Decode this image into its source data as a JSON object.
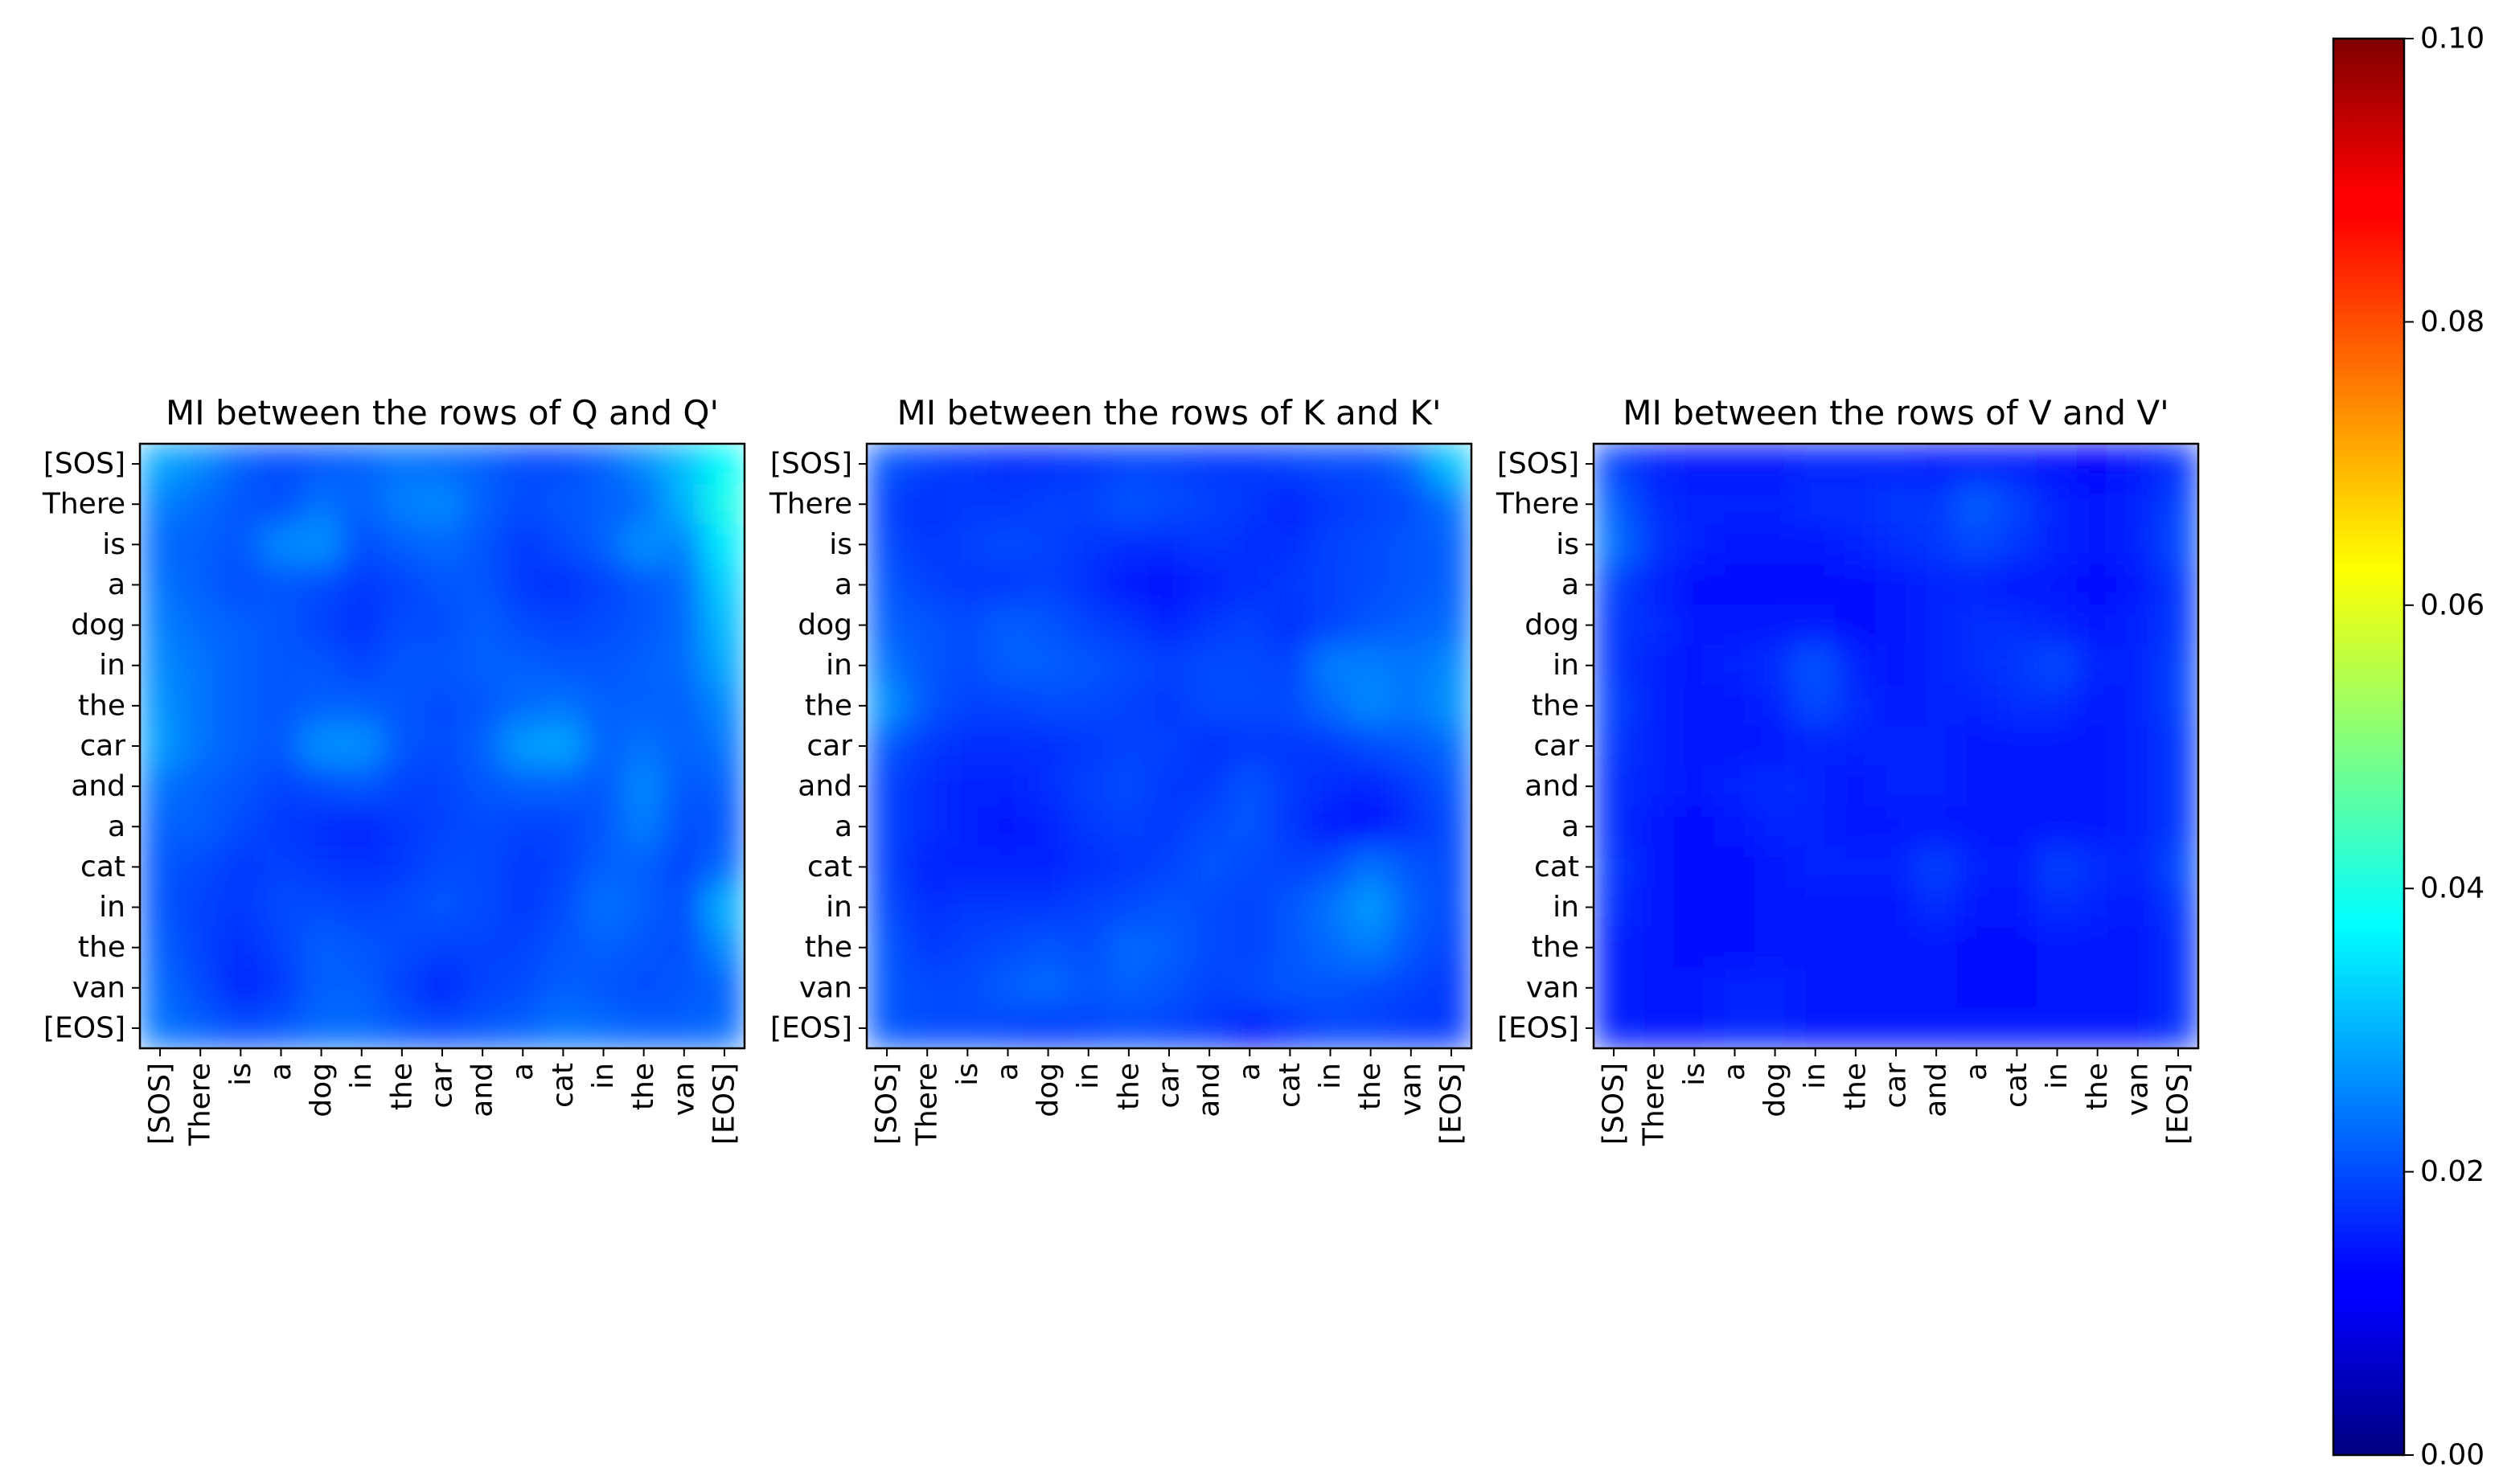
{
  "chart_data": {
    "type": "heatmap",
    "colormap": "jet",
    "interpolation": "smooth",
    "colorbar": {
      "min": 0.0,
      "max": 0.1,
      "ticks": [
        "0.00",
        "0.02",
        "0.04",
        "0.06",
        "0.08",
        "0.10"
      ]
    },
    "tokens": [
      "[SOS]",
      "There",
      "is",
      "a",
      "dog",
      "in",
      "the",
      "car",
      "and",
      "a",
      "cat",
      "in",
      "the",
      "van",
      "[EOS]"
    ],
    "panels": [
      {
        "title": "MI between the rows of Q and Q'",
        "values": [
          [
            0.029,
            0.026,
            0.022,
            0.02,
            0.021,
            0.022,
            0.024,
            0.023,
            0.022,
            0.02,
            0.02,
            0.022,
            0.026,
            0.031,
            0.038
          ],
          [
            0.025,
            0.023,
            0.021,
            0.02,
            0.024,
            0.022,
            0.025,
            0.026,
            0.022,
            0.02,
            0.021,
            0.022,
            0.023,
            0.03,
            0.04
          ],
          [
            0.023,
            0.022,
            0.021,
            0.026,
            0.027,
            0.02,
            0.022,
            0.023,
            0.021,
            0.018,
            0.02,
            0.022,
            0.027,
            0.025,
            0.036
          ],
          [
            0.024,
            0.022,
            0.02,
            0.021,
            0.02,
            0.018,
            0.019,
            0.021,
            0.021,
            0.018,
            0.017,
            0.019,
            0.021,
            0.023,
            0.033
          ],
          [
            0.025,
            0.023,
            0.022,
            0.021,
            0.019,
            0.017,
            0.02,
            0.02,
            0.022,
            0.02,
            0.019,
            0.02,
            0.021,
            0.023,
            0.031
          ],
          [
            0.026,
            0.024,
            0.022,
            0.021,
            0.021,
            0.019,
            0.021,
            0.021,
            0.022,
            0.022,
            0.021,
            0.021,
            0.022,
            0.023,
            0.029
          ],
          [
            0.027,
            0.024,
            0.022,
            0.021,
            0.022,
            0.022,
            0.021,
            0.02,
            0.021,
            0.023,
            0.024,
            0.022,
            0.022,
            0.022,
            0.026
          ],
          [
            0.028,
            0.024,
            0.022,
            0.021,
            0.027,
            0.027,
            0.021,
            0.02,
            0.022,
            0.028,
            0.029,
            0.022,
            0.024,
            0.022,
            0.024
          ],
          [
            0.024,
            0.022,
            0.021,
            0.019,
            0.02,
            0.021,
            0.019,
            0.019,
            0.021,
            0.022,
            0.022,
            0.021,
            0.026,
            0.021,
            0.022
          ],
          [
            0.022,
            0.022,
            0.02,
            0.018,
            0.017,
            0.016,
            0.018,
            0.019,
            0.02,
            0.019,
            0.019,
            0.021,
            0.025,
            0.02,
            0.021
          ],
          [
            0.021,
            0.02,
            0.018,
            0.019,
            0.018,
            0.017,
            0.018,
            0.02,
            0.02,
            0.018,
            0.019,
            0.022,
            0.022,
            0.019,
            0.023
          ],
          [
            0.021,
            0.019,
            0.018,
            0.02,
            0.02,
            0.019,
            0.02,
            0.021,
            0.02,
            0.018,
            0.02,
            0.024,
            0.022,
            0.02,
            0.03
          ],
          [
            0.022,
            0.019,
            0.017,
            0.019,
            0.022,
            0.021,
            0.02,
            0.019,
            0.019,
            0.019,
            0.021,
            0.022,
            0.021,
            0.02,
            0.026
          ],
          [
            0.023,
            0.02,
            0.016,
            0.018,
            0.022,
            0.022,
            0.019,
            0.016,
            0.019,
            0.02,
            0.022,
            0.021,
            0.02,
            0.021,
            0.022
          ],
          [
            0.024,
            0.022,
            0.02,
            0.021,
            0.023,
            0.023,
            0.021,
            0.02,
            0.021,
            0.022,
            0.024,
            0.023,
            0.022,
            0.022,
            0.023
          ]
        ]
      },
      {
        "title": "MI between the rows of K and K'",
        "values": [
          [
            0.021,
            0.019,
            0.018,
            0.017,
            0.017,
            0.018,
            0.019,
            0.019,
            0.018,
            0.018,
            0.019,
            0.02,
            0.02,
            0.023,
            0.032
          ],
          [
            0.019,
            0.017,
            0.018,
            0.018,
            0.019,
            0.019,
            0.021,
            0.02,
            0.019,
            0.018,
            0.016,
            0.018,
            0.019,
            0.02,
            0.024
          ],
          [
            0.02,
            0.018,
            0.019,
            0.02,
            0.019,
            0.018,
            0.017,
            0.017,
            0.018,
            0.017,
            0.017,
            0.019,
            0.02,
            0.021,
            0.022
          ],
          [
            0.021,
            0.019,
            0.018,
            0.018,
            0.019,
            0.017,
            0.015,
            0.014,
            0.016,
            0.017,
            0.018,
            0.019,
            0.02,
            0.021,
            0.022
          ],
          [
            0.022,
            0.021,
            0.02,
            0.022,
            0.021,
            0.019,
            0.018,
            0.016,
            0.018,
            0.019,
            0.017,
            0.019,
            0.021,
            0.022,
            0.023
          ],
          [
            0.024,
            0.021,
            0.02,
            0.022,
            0.022,
            0.021,
            0.02,
            0.019,
            0.02,
            0.02,
            0.019,
            0.025,
            0.025,
            0.024,
            0.026
          ],
          [
            0.027,
            0.021,
            0.019,
            0.019,
            0.02,
            0.02,
            0.019,
            0.018,
            0.02,
            0.02,
            0.02,
            0.023,
            0.026,
            0.024,
            0.027
          ],
          [
            0.021,
            0.018,
            0.017,
            0.017,
            0.017,
            0.018,
            0.019,
            0.019,
            0.017,
            0.018,
            0.018,
            0.018,
            0.02,
            0.021,
            0.023
          ],
          [
            0.019,
            0.017,
            0.016,
            0.016,
            0.017,
            0.019,
            0.02,
            0.018,
            0.018,
            0.021,
            0.018,
            0.017,
            0.016,
            0.018,
            0.021
          ],
          [
            0.019,
            0.017,
            0.016,
            0.015,
            0.016,
            0.018,
            0.019,
            0.018,
            0.02,
            0.021,
            0.018,
            0.015,
            0.014,
            0.017,
            0.02
          ],
          [
            0.019,
            0.016,
            0.016,
            0.016,
            0.016,
            0.017,
            0.018,
            0.019,
            0.021,
            0.02,
            0.019,
            0.02,
            0.024,
            0.021,
            0.02
          ],
          [
            0.02,
            0.017,
            0.018,
            0.018,
            0.018,
            0.019,
            0.02,
            0.021,
            0.02,
            0.019,
            0.021,
            0.024,
            0.028,
            0.022,
            0.02
          ],
          [
            0.021,
            0.018,
            0.019,
            0.02,
            0.021,
            0.02,
            0.023,
            0.022,
            0.02,
            0.019,
            0.021,
            0.023,
            0.025,
            0.021,
            0.019
          ],
          [
            0.021,
            0.02,
            0.02,
            0.022,
            0.023,
            0.021,
            0.022,
            0.021,
            0.019,
            0.02,
            0.021,
            0.021,
            0.02,
            0.019,
            0.018
          ],
          [
            0.021,
            0.02,
            0.02,
            0.019,
            0.018,
            0.019,
            0.02,
            0.019,
            0.018,
            0.015,
            0.017,
            0.019,
            0.019,
            0.018,
            0.018
          ]
        ]
      },
      {
        "title": "MI between the rows of V and V'",
        "values": [
          [
            0.019,
            0.016,
            0.015,
            0.015,
            0.015,
            0.016,
            0.016,
            0.016,
            0.015,
            0.015,
            0.015,
            0.014,
            0.013,
            0.015,
            0.017
          ],
          [
            0.022,
            0.017,
            0.016,
            0.016,
            0.016,
            0.017,
            0.017,
            0.018,
            0.018,
            0.022,
            0.019,
            0.016,
            0.015,
            0.016,
            0.019
          ],
          [
            0.024,
            0.018,
            0.016,
            0.015,
            0.015,
            0.015,
            0.016,
            0.017,
            0.018,
            0.02,
            0.018,
            0.016,
            0.015,
            0.016,
            0.02
          ],
          [
            0.019,
            0.016,
            0.014,
            0.014,
            0.014,
            0.014,
            0.014,
            0.015,
            0.016,
            0.016,
            0.015,
            0.015,
            0.014,
            0.015,
            0.018
          ],
          [
            0.018,
            0.017,
            0.015,
            0.015,
            0.015,
            0.015,
            0.014,
            0.015,
            0.016,
            0.017,
            0.017,
            0.016,
            0.015,
            0.016,
            0.018
          ],
          [
            0.018,
            0.016,
            0.015,
            0.016,
            0.017,
            0.021,
            0.016,
            0.015,
            0.016,
            0.017,
            0.018,
            0.02,
            0.016,
            0.016,
            0.019
          ],
          [
            0.019,
            0.016,
            0.015,
            0.015,
            0.016,
            0.02,
            0.017,
            0.015,
            0.016,
            0.016,
            0.017,
            0.017,
            0.015,
            0.016,
            0.019
          ],
          [
            0.018,
            0.016,
            0.015,
            0.015,
            0.015,
            0.016,
            0.016,
            0.016,
            0.016,
            0.015,
            0.015,
            0.015,
            0.015,
            0.016,
            0.018
          ],
          [
            0.017,
            0.016,
            0.015,
            0.016,
            0.017,
            0.016,
            0.015,
            0.016,
            0.016,
            0.015,
            0.015,
            0.015,
            0.015,
            0.016,
            0.018
          ],
          [
            0.017,
            0.015,
            0.014,
            0.015,
            0.016,
            0.016,
            0.015,
            0.015,
            0.015,
            0.015,
            0.015,
            0.015,
            0.015,
            0.016,
            0.018
          ],
          [
            0.018,
            0.015,
            0.014,
            0.014,
            0.015,
            0.016,
            0.016,
            0.016,
            0.019,
            0.016,
            0.015,
            0.019,
            0.017,
            0.016,
            0.02
          ],
          [
            0.017,
            0.015,
            0.014,
            0.014,
            0.015,
            0.015,
            0.015,
            0.015,
            0.017,
            0.015,
            0.015,
            0.017,
            0.016,
            0.015,
            0.018
          ],
          [
            0.016,
            0.015,
            0.014,
            0.014,
            0.015,
            0.015,
            0.015,
            0.015,
            0.015,
            0.014,
            0.014,
            0.015,
            0.015,
            0.015,
            0.017
          ],
          [
            0.016,
            0.015,
            0.015,
            0.016,
            0.016,
            0.015,
            0.015,
            0.015,
            0.015,
            0.014,
            0.014,
            0.015,
            0.015,
            0.015,
            0.017
          ],
          [
            0.016,
            0.015,
            0.015,
            0.016,
            0.016,
            0.015,
            0.015,
            0.015,
            0.015,
            0.015,
            0.015,
            0.015,
            0.015,
            0.015,
            0.017
          ]
        ]
      }
    ]
  }
}
